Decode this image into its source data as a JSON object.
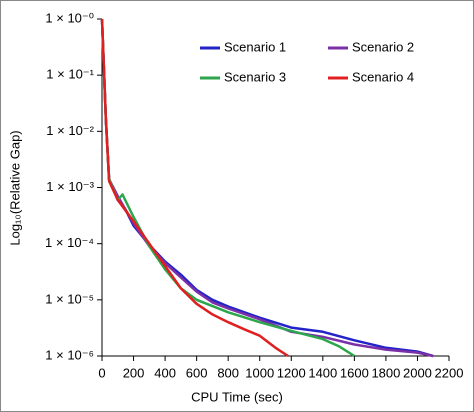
{
  "chart_data": {
    "type": "line",
    "xlabel": "CPU Time (sec)",
    "ylabel": "Log₁₀(Relative Gap)",
    "yscale": "log",
    "xlim": [
      0,
      2200
    ],
    "xticks": [
      0,
      200,
      400,
      600,
      800,
      1000,
      1200,
      1400,
      1600,
      1800,
      2000,
      2200
    ],
    "ylim": [
      1e-06,
      1
    ],
    "yticks": [
      {
        "value": 1e-06,
        "label": "1 × 10⁻⁶"
      },
      {
        "value": 1e-05,
        "label": "1 × 10⁻⁵"
      },
      {
        "value": 0.0001,
        "label": "1 × 10⁻⁴"
      },
      {
        "value": 0.001,
        "label": "1 × 10⁻³"
      },
      {
        "value": 0.01,
        "label": "1 × 10⁻²"
      },
      {
        "value": 0.1,
        "label": "1 × 10⁻¹"
      },
      {
        "value": 1,
        "label": "1 × 10⁻⁰"
      }
    ],
    "legend": "top-right",
    "series": [
      {
        "name": "Scenario 1",
        "color": "#2323c8",
        "x": [
          0,
          25,
          45,
          100,
          150,
          200,
          300,
          400,
          500,
          600,
          700,
          800,
          1000,
          1200,
          1400,
          1600,
          1800,
          2000,
          2100
        ],
        "values": [
          1,
          0.016,
          0.0014,
          0.0006,
          0.0004,
          0.00021,
          9.5e-05,
          4.8e-05,
          2.8e-05,
          1.5e-05,
          1e-05,
          7.6e-06,
          4.8e-06,
          3.2e-06,
          2.7e-06,
          1.9e-06,
          1.4e-06,
          1.2e-06,
          1e-06
        ]
      },
      {
        "name": "Scenario 2",
        "color": "#7b2fa8",
        "x": [
          0,
          25,
          45,
          100,
          200,
          300,
          400,
          500,
          600,
          700,
          800,
          1000,
          1200,
          1400,
          1600,
          1800,
          2000,
          2100
        ],
        "values": [
          1,
          0.016,
          0.0014,
          0.0007,
          0.00023,
          9e-05,
          4.5e-05,
          2.5e-05,
          1.4e-05,
          9e-06,
          7e-06,
          4.5e-06,
          2.7e-06,
          2.2e-06,
          1.6e-06,
          1.3e-06,
          1.15e-06,
          1e-06
        ]
      },
      {
        "name": "Scenario 3",
        "color": "#2ca64c",
        "x": [
          0,
          25,
          45,
          100,
          130,
          200,
          300,
          400,
          500,
          600,
          800,
          1000,
          1200,
          1400,
          1500,
          1600
        ],
        "values": [
          1,
          0.016,
          0.0014,
          0.0006,
          0.00075,
          0.0003,
          9e-05,
          3.5e-05,
          1.6e-05,
          1e-05,
          6e-06,
          4e-06,
          2.8e-06,
          2e-06,
          1.5e-06,
          1e-06
        ]
      },
      {
        "name": "Scenario 4",
        "color": "#e02020",
        "x": [
          0,
          25,
          45,
          100,
          200,
          300,
          400,
          500,
          600,
          700,
          800,
          900,
          1000,
          1100,
          1180
        ],
        "values": [
          1,
          0.016,
          0.0013,
          0.0006,
          0.00025,
          0.0001,
          4e-05,
          1.6e-05,
          8.5e-06,
          5.5e-06,
          4e-06,
          3e-06,
          2.3e-06,
          1.4e-06,
          1e-06
        ]
      }
    ]
  }
}
